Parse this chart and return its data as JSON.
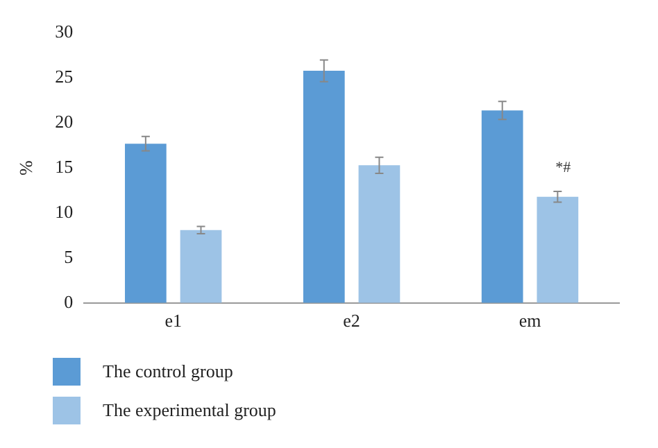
{
  "chart_data": {
    "type": "bar",
    "ylabel": "%",
    "categories": [
      "e1",
      "e2",
      "em"
    ],
    "series": [
      {
        "name": "The control group",
        "color": "#5b9bd5",
        "values": [
          17.7,
          25.8,
          21.4
        ],
        "errors": [
          0.8,
          1.2,
          1.0
        ]
      },
      {
        "name": "The experimental group",
        "color": "#9dc3e6",
        "values": [
          8.1,
          15.3,
          11.8
        ],
        "errors": [
          0.4,
          0.9,
          0.6
        ]
      }
    ],
    "ylim": [
      0,
      30
    ],
    "yticks": [
      0,
      5,
      10,
      15,
      20,
      25,
      30
    ],
    "grid": false,
    "legend": "bottom",
    "annotations": [
      {
        "text": "*#",
        "x": "em",
        "y": 13.5
      }
    ]
  }
}
